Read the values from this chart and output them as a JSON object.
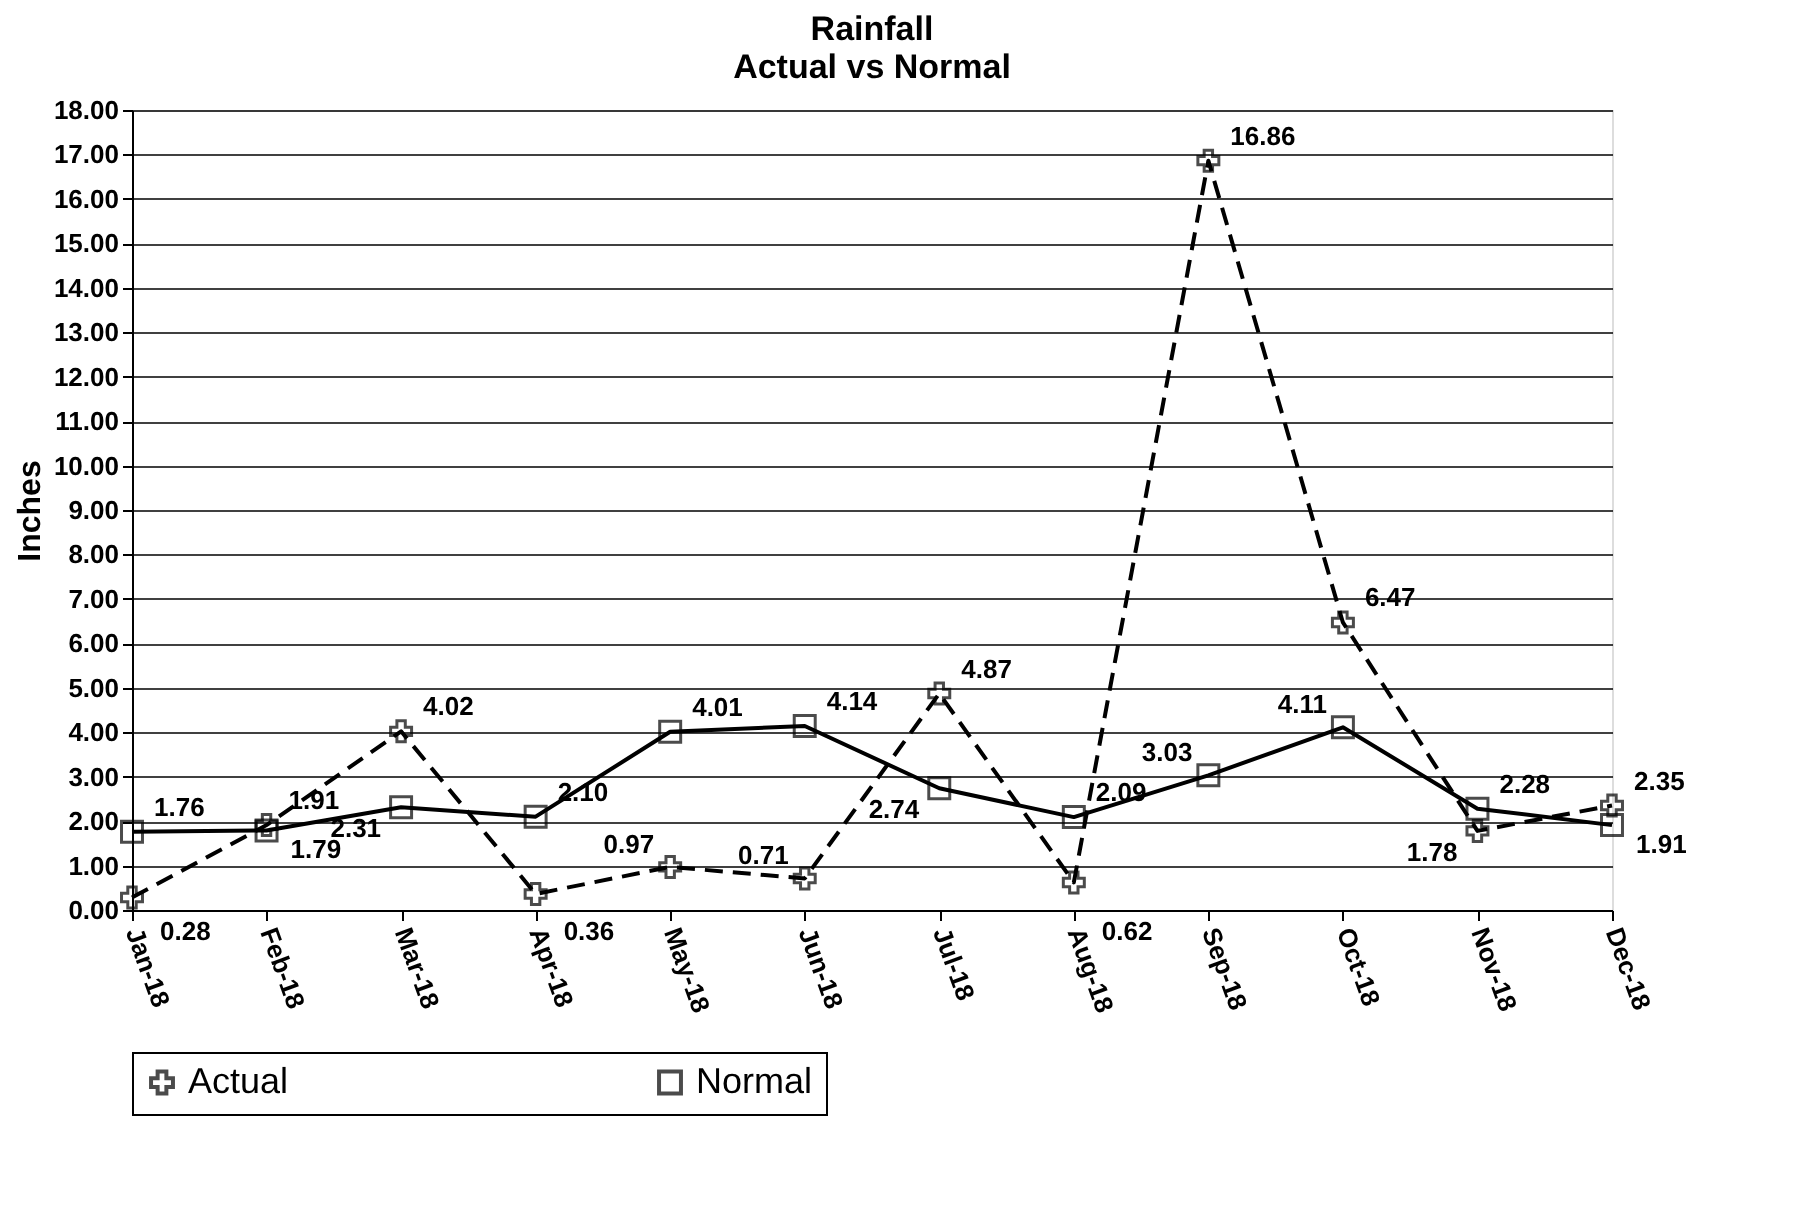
{
  "chart_data": {
    "type": "line",
    "title": "Rainfall",
    "subtitle": "Actual vs Normal",
    "ylabel": "Inches",
    "categories": [
      "Jan-18",
      "Feb-18",
      "Mar-18",
      "Apr-18",
      "May-18",
      "Jun-18",
      "Jul-18",
      "Aug-18",
      "Sep-18",
      "Oct-18",
      "Nov-18",
      "Dec-18"
    ],
    "series": [
      {
        "name": "Actual",
        "color": "#000000",
        "marker": "cross",
        "line_style": "dashed",
        "values": [
          0.28,
          1.91,
          4.02,
          0.36,
          0.97,
          0.71,
          4.87,
          0.62,
          16.86,
          6.47,
          1.78,
          2.35
        ],
        "value_labels": [
          "0.28",
          "1.91",
          "4.02",
          "0.36",
          "0.97",
          "0.71",
          "4.87",
          "0.62",
          "16.86",
          "6.47",
          "1.78",
          "2.35"
        ]
      },
      {
        "name": "Normal",
        "color": "#000000",
        "marker": "square",
        "line_style": "solid",
        "values": [
          1.76,
          1.79,
          2.31,
          2.1,
          4.01,
          4.14,
          2.74,
          2.09,
          3.03,
          4.11,
          2.28,
          1.91
        ],
        "value_labels": [
          "1.76",
          "1.79",
          "2.31",
          "2.10",
          "4.01",
          "4.14",
          "2.74",
          "2.09",
          "3.03",
          "4.11",
          "2.28",
          "1.91"
        ]
      }
    ],
    "ylim": [
      0,
      18
    ],
    "yticks": [
      {
        "value": 0,
        "label": "0.00"
      },
      {
        "value": 1,
        "label": "1.00"
      },
      {
        "value": 2,
        "label": "2.00"
      },
      {
        "value": 3,
        "label": "3.00"
      },
      {
        "value": 4,
        "label": "4.00"
      },
      {
        "value": 5,
        "label": "5.00"
      },
      {
        "value": 6,
        "label": "6.00"
      },
      {
        "value": 7,
        "label": "7.00"
      },
      {
        "value": 8,
        "label": "8.00"
      },
      {
        "value": 9,
        "label": "9.00"
      },
      {
        "value": 10,
        "label": "10.00"
      },
      {
        "value": 11,
        "label": "11.00"
      },
      {
        "value": 12,
        "label": "12.00"
      },
      {
        "value": 13,
        "label": "13.00"
      },
      {
        "value": 14,
        "label": "14.00"
      },
      {
        "value": 15,
        "label": "15.00"
      },
      {
        "value": 16,
        "label": "16.00"
      },
      {
        "value": 17,
        "label": "17.00"
      },
      {
        "value": 18,
        "label": "18.00"
      }
    ],
    "grid": "y",
    "legend": "bottom"
  }
}
